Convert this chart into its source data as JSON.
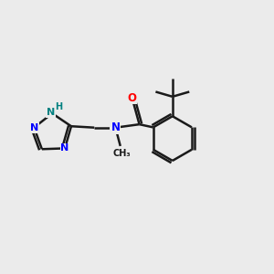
{
  "background_color": "#ebebeb",
  "bond_color": "#1a1a1a",
  "bond_width": 1.8,
  "N_color": "#0000ff",
  "O_color": "#ff0000",
  "NH_color": "#008080",
  "fig_width": 3.0,
  "fig_height": 3.0,
  "dpi": 100,
  "xlim": [
    0,
    10
  ],
  "ylim": [
    0,
    10
  ]
}
